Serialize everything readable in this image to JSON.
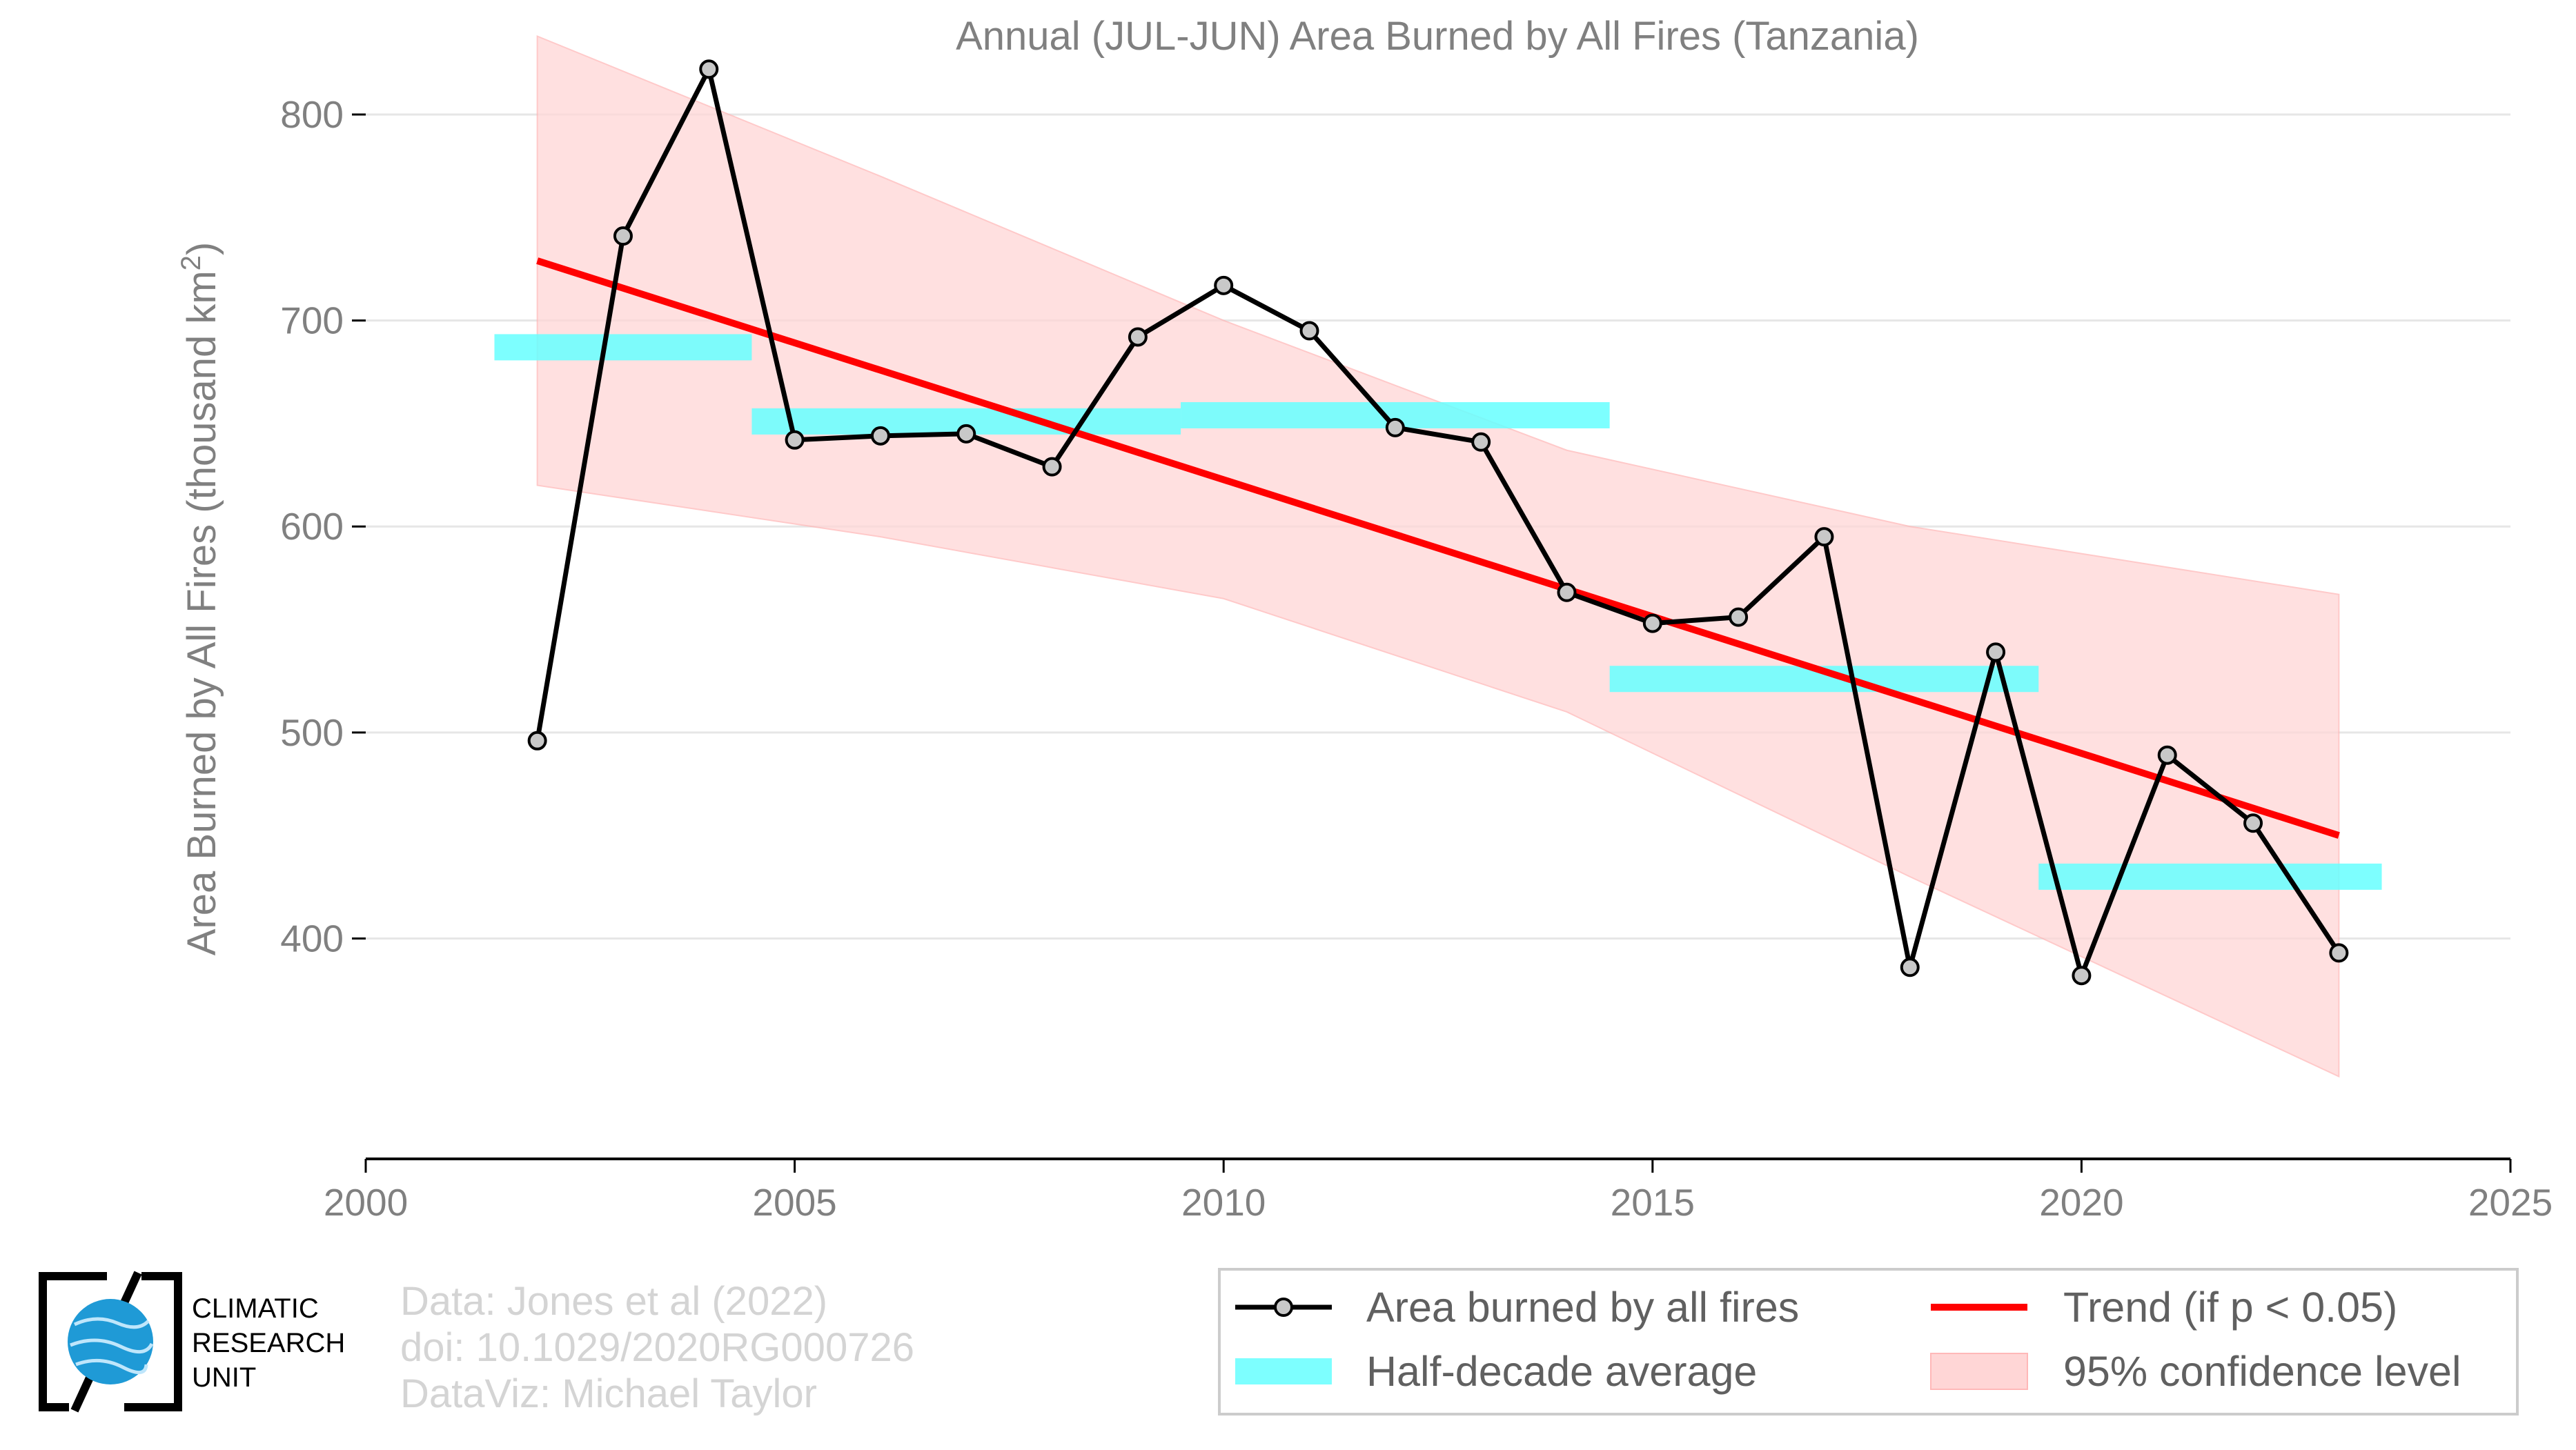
{
  "chart_data": {
    "type": "line",
    "title": "Annual (JUL-JUN) Area Burned by All Fires (Tanzania)",
    "ylabel": "Area Burned by All Fires (thousand km",
    "ylabel_sup": "2",
    "ylabel_close": ")",
    "xlim": [
      2000,
      2025
    ],
    "ylim": [
      293,
      802
    ],
    "xticks": [
      2000,
      2005,
      2010,
      2015,
      2020,
      2025
    ],
    "yticks": [
      400,
      500,
      600,
      700,
      800
    ],
    "grid": "horizontal",
    "legend_position": "bottom-right",
    "series": [
      {
        "name": "Area burned by all fires",
        "x": [
          2002,
          2003,
          2004,
          2005,
          2006,
          2007,
          2008,
          2009,
          2010,
          2011,
          2012,
          2013,
          2014,
          2015,
          2016,
          2017,
          2018,
          2019,
          2020,
          2021,
          2022,
          2023
        ],
        "y": [
          496,
          741,
          822,
          642,
          644,
          645,
          629,
          692,
          717,
          695,
          648,
          641,
          568,
          553,
          556,
          595,
          386,
          539,
          382,
          489,
          456,
          393
        ]
      }
    ],
    "half_decade_averages": [
      {
        "x0": 2001.5,
        "x1": 2004.5,
        "value": 687
      },
      {
        "x0": 2004.5,
        "x1": 2009.5,
        "value": 651
      },
      {
        "x0": 2009.5,
        "x1": 2014.5,
        "value": 654
      },
      {
        "x0": 2014.5,
        "x1": 2019.5,
        "value": 526
      },
      {
        "x0": 2019.5,
        "x1": 2023.5,
        "value": 430
      }
    ],
    "trend": {
      "x": [
        2002,
        2023
      ],
      "y": [
        729,
        450
      ]
    },
    "confidence_band": {
      "x": [
        2002,
        2006,
        2010,
        2014,
        2018,
        2023
      ],
      "upper": [
        838,
        770,
        700,
        637,
        600,
        567
      ],
      "lower": [
        620,
        595,
        565,
        510,
        430,
        333
      ]
    },
    "colors": {
      "line": "#000000",
      "marker_fill": "#c8c8c8",
      "trend": "#ff0000",
      "half_decade": "#66ffff",
      "band": "#ffd6d6",
      "grid": "#e6e6e6",
      "text": "#808080"
    }
  },
  "legend": {
    "series_line": "Area burned by all fires",
    "trend": "Trend (if p < 0.05)",
    "half_decade": "Half-decade average",
    "band": "95% confidence level"
  },
  "credits": {
    "line1": "Data: Jones et al (2022)",
    "line2": "doi: 10.1029/2020RG000726",
    "line3": "DataViz: Michael Taylor"
  },
  "logo": {
    "line1": "CLIMATIC",
    "line2": "RESEARCH",
    "line3": "UNIT"
  }
}
